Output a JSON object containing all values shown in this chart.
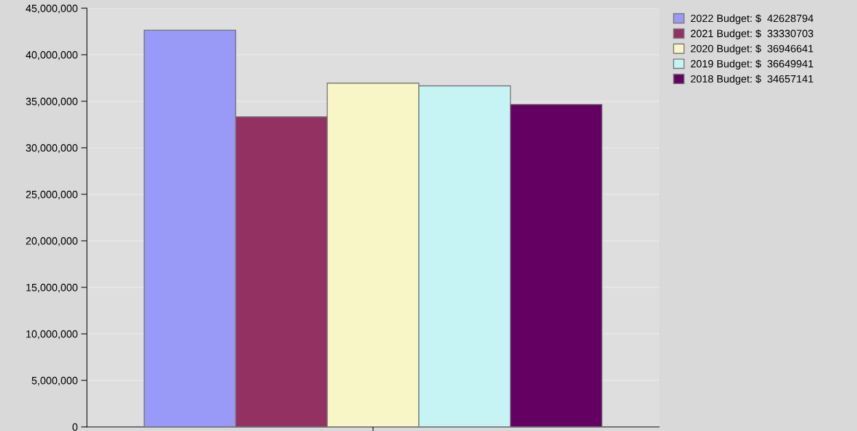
{
  "chart_data": {
    "type": "bar",
    "categories": [
      null
    ],
    "series": [
      {
        "name": "2022 Budget: $  42628794",
        "color": "#9999f8",
        "values": [
          42628794
        ]
      },
      {
        "name": "2021 Budget: $  33330703",
        "color": "#933162",
        "values": [
          33330703
        ]
      },
      {
        "name": "2020 Budget: $  36946641",
        "color": "#f8f6c6",
        "values": [
          36946641
        ]
      },
      {
        "name": "2019 Budget: $  36649941",
        "color": "#c6f4f4",
        "values": [
          36649941
        ]
      },
      {
        "name": "2018 Budget: $  34657141",
        "color": "#630061",
        "values": [
          34657141
        ]
      }
    ],
    "ylim": [
      0,
      45000000
    ],
    "yticks": [
      {
        "value": 0,
        "label": "0"
      },
      {
        "value": 5000000,
        "label": "5,000,000"
      },
      {
        "value": 10000000,
        "label": "10,000,000"
      },
      {
        "value": 15000000,
        "label": "15,000,000"
      },
      {
        "value": 20000000,
        "label": "20,000,000"
      },
      {
        "value": 25000000,
        "label": "25,000,000"
      },
      {
        "value": 30000000,
        "label": "30,000,000"
      },
      {
        "value": 35000000,
        "label": "35,000,000"
      },
      {
        "value": 40000000,
        "label": "40,000,000"
      },
      {
        "value": 45000000,
        "label": "45,000,000"
      }
    ],
    "grid": "y",
    "legend": "top right"
  }
}
